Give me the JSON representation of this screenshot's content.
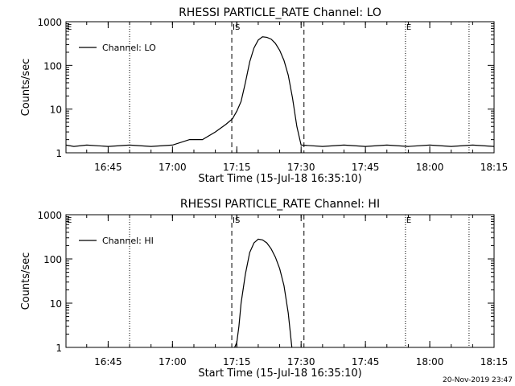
{
  "chart_data": [
    {
      "type": "line",
      "title": "RHESSI PARTICLE_RATE Channel: LO",
      "xlabel": "Start Time (15-Jul-18 16:35:10)",
      "ylabel": "Counts/sec",
      "yscale": "log",
      "ylim": [
        1,
        1000
      ],
      "xlim": [
        "16:35:10",
        "18:15:00"
      ],
      "x_ticks": [
        "16:45",
        "17:00",
        "17:15",
        "17:30",
        "17:45",
        "18:00",
        "18:15"
      ],
      "y_ticks": [
        "1",
        "10",
        "100",
        "1000"
      ],
      "legend": {
        "position": "top-left",
        "entries": [
          "Channel: LO"
        ]
      },
      "markers": [
        {
          "label": "E",
          "time": "16:35:10",
          "style": "dotted"
        },
        {
          "label": "",
          "time": "16:50:00",
          "style": "dotted"
        },
        {
          "label": "IS",
          "time": "17:13:50",
          "style": "dashed"
        },
        {
          "label": "",
          "time": "17:30:40",
          "style": "dashed"
        },
        {
          "label": "E",
          "time": "17:54:20",
          "style": "dotted"
        },
        {
          "label": "",
          "time": "18:09:10",
          "style": "dotted"
        }
      ],
      "series": [
        {
          "name": "Channel: LO",
          "x": [
            "16:35:10",
            "16:37:00",
            "16:40:00",
            "16:45:00",
            "16:50:00",
            "16:55:00",
            "17:00:00",
            "17:04:00",
            "17:07:00",
            "17:10:00",
            "17:12:30",
            "17:14:00",
            "17:15:00",
            "17:16:00",
            "17:17:00",
            "17:18:00",
            "17:19:00",
            "17:20:00",
            "17:21:00",
            "17:22:00",
            "17:23:00",
            "17:24:00",
            "17:25:00",
            "17:26:00",
            "17:27:00",
            "17:28:00",
            "17:29:00",
            "17:30:00",
            "17:35:00",
            "17:40:00",
            "17:45:00",
            "17:50:00",
            "17:55:00",
            "18:00:00",
            "18:05:00",
            "18:10:00",
            "18:15:00"
          ],
          "y": [
            1.5,
            1.4,
            1.5,
            1.4,
            1.5,
            1.4,
            1.5,
            2,
            2,
            3,
            4.5,
            6,
            9,
            15,
            40,
            120,
            250,
            380,
            450,
            440,
            400,
            320,
            220,
            130,
            60,
            18,
            4,
            1.5,
            1.4,
            1.5,
            1.4,
            1.5,
            1.4,
            1.5,
            1.4,
            1.5,
            1.4
          ]
        }
      ]
    },
    {
      "type": "line",
      "title": "RHESSI PARTICLE_RATE Channel: HI",
      "xlabel": "Start Time (15-Jul-18 16:35:10)",
      "ylabel": "Counts/sec",
      "yscale": "log",
      "ylim": [
        1,
        1000
      ],
      "xlim": [
        "16:35:10",
        "18:15:00"
      ],
      "x_ticks": [
        "16:45",
        "17:00",
        "17:15",
        "17:30",
        "17:45",
        "18:00",
        "18:15"
      ],
      "y_ticks": [
        "1",
        "10",
        "100",
        "1000"
      ],
      "legend": {
        "position": "top-left",
        "entries": [
          "Channel: HI"
        ]
      },
      "markers": [
        {
          "label": "E",
          "time": "16:35:10",
          "style": "dotted"
        },
        {
          "label": "",
          "time": "16:50:00",
          "style": "dotted"
        },
        {
          "label": "IS",
          "time": "17:13:50",
          "style": "dashed"
        },
        {
          "label": "",
          "time": "17:30:40",
          "style": "dashed"
        },
        {
          "label": "E",
          "time": "17:54:20",
          "style": "dotted"
        },
        {
          "label": "",
          "time": "18:09:10",
          "style": "dotted"
        }
      ],
      "series": [
        {
          "name": "Channel: HI",
          "x": [
            "17:14:30",
            "17:15:00",
            "17:15:30",
            "17:16:00",
            "17:17:00",
            "17:18:00",
            "17:19:00",
            "17:20:00",
            "17:21:00",
            "17:22:00",
            "17:23:00",
            "17:24:00",
            "17:25:00",
            "17:26:00",
            "17:27:00",
            "17:27:50"
          ],
          "y": [
            1,
            1.3,
            3,
            10,
            45,
            140,
            230,
            280,
            270,
            230,
            170,
            110,
            60,
            25,
            6,
            1
          ]
        }
      ]
    }
  ],
  "footer_timestamp": "20-Nov-2019 23:47"
}
